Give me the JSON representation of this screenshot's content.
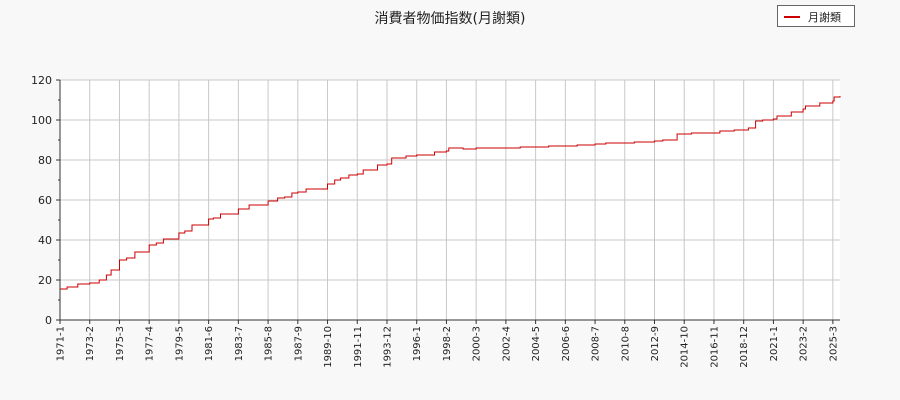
{
  "chart_data": {
    "type": "line",
    "title": "消費者物価指数(月謝類)",
    "xlabel": "",
    "ylabel": "",
    "ylim": [
      0,
      120
    ],
    "yticks": [
      0,
      20,
      40,
      60,
      80,
      100,
      120
    ],
    "x_tick_labels": [
      "1971-1",
      "1973-2",
      "1975-3",
      "1977-4",
      "1979-5",
      "1981-6",
      "1983-7",
      "1985-8",
      "1987-9",
      "1989-10",
      "1991-11",
      "1993-12",
      "1996-1",
      "1998-2",
      "2000-3",
      "2002-4",
      "2004-5",
      "2006-6",
      "2008-7",
      "2010-8",
      "2012-9",
      "2014-10",
      "2016-11",
      "2018-12",
      "2021-1",
      "2023-2",
      "2025-3"
    ],
    "x_range": [
      "1971-1",
      "2025-9"
    ],
    "grid": true,
    "legend_position": "top-right",
    "series": [
      {
        "name": "月謝類",
        "color": "#cc0000",
        "points": [
          [
            "1971-1",
            15.5
          ],
          [
            "1971-7",
            16.5
          ],
          [
            "1972-4",
            18.0
          ],
          [
            "1973-2",
            18.5
          ],
          [
            "1973-10",
            20.0
          ],
          [
            "1974-4",
            22.5
          ],
          [
            "1974-8",
            25.0
          ],
          [
            "1975-3",
            30.0
          ],
          [
            "1975-9",
            31.0
          ],
          [
            "1976-4",
            34.0
          ],
          [
            "1977-4",
            37.5
          ],
          [
            "1977-10",
            38.5
          ],
          [
            "1978-4",
            40.5
          ],
          [
            "1979-5",
            43.5
          ],
          [
            "1979-10",
            44.5
          ],
          [
            "1980-4",
            47.5
          ],
          [
            "1981-6",
            50.5
          ],
          [
            "1981-10",
            51.0
          ],
          [
            "1982-4",
            53.0
          ],
          [
            "1983-7",
            55.5
          ],
          [
            "1984-4",
            57.5
          ],
          [
            "1985-8",
            59.5
          ],
          [
            "1986-4",
            61.0
          ],
          [
            "1986-10",
            61.5
          ],
          [
            "1987-4",
            63.5
          ],
          [
            "1987-9",
            64.0
          ],
          [
            "1988-4",
            65.5
          ],
          [
            "1989-10",
            68.0
          ],
          [
            "1990-4",
            70.0
          ],
          [
            "1990-9",
            71.0
          ],
          [
            "1991-4",
            72.5
          ],
          [
            "1991-11",
            73.0
          ],
          [
            "1992-4",
            75.0
          ],
          [
            "1993-4",
            77.5
          ],
          [
            "1993-12",
            78.0
          ],
          [
            "1994-4",
            81.0
          ],
          [
            "1995-4",
            82.0
          ],
          [
            "1996-1",
            82.5
          ],
          [
            "1997-4",
            84.0
          ],
          [
            "1998-2",
            84.5
          ],
          [
            "1998-4",
            86.0
          ],
          [
            "1999-4",
            85.5
          ],
          [
            "2000-3",
            86.0
          ],
          [
            "2002-4",
            86.0
          ],
          [
            "2003-4",
            86.5
          ],
          [
            "2004-5",
            86.5
          ],
          [
            "2005-4",
            87.0
          ],
          [
            "2006-6",
            87.0
          ],
          [
            "2007-4",
            87.5
          ],
          [
            "2008-7",
            88.0
          ],
          [
            "2009-4",
            88.5
          ],
          [
            "2010-8",
            88.5
          ],
          [
            "2011-4",
            89.0
          ],
          [
            "2012-9",
            89.5
          ],
          [
            "2013-4",
            90.0
          ],
          [
            "2014-4",
            93.0
          ],
          [
            "2014-10",
            93.0
          ],
          [
            "2015-4",
            93.5
          ],
          [
            "2016-11",
            93.5
          ],
          [
            "2017-4",
            94.5
          ],
          [
            "2018-4",
            95.0
          ],
          [
            "2018-12",
            95.0
          ],
          [
            "2019-4",
            96.0
          ],
          [
            "2019-10",
            99.5
          ],
          [
            "2020-4",
            100.0
          ],
          [
            "2021-1",
            100.5
          ],
          [
            "2021-4",
            102.0
          ],
          [
            "2022-4",
            104.0
          ],
          [
            "2023-2",
            105.5
          ],
          [
            "2023-4",
            107.0
          ],
          [
            "2024-4",
            108.5
          ],
          [
            "2025-3",
            109.5
          ],
          [
            "2025-4",
            111.5
          ],
          [
            "2025-9",
            112.0
          ]
        ]
      }
    ]
  }
}
